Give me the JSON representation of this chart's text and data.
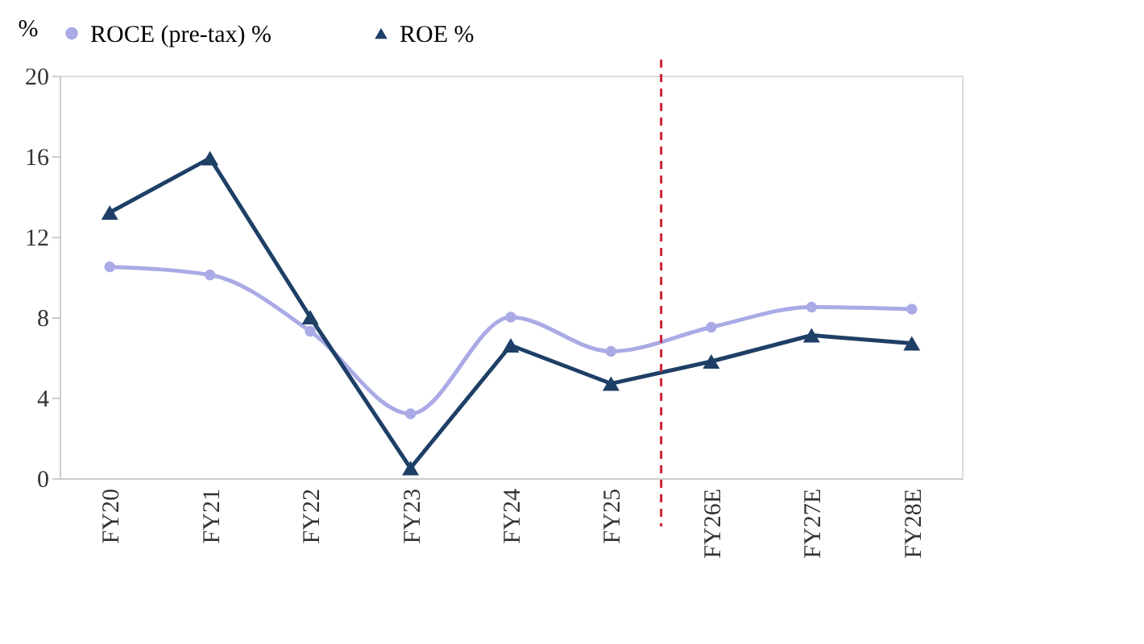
{
  "chart_data": {
    "type": "line",
    "ylabel": "%",
    "categories": [
      "FY20",
      "FY21",
      "FY22",
      "FY23",
      "FY24",
      "FY25",
      "FY26E",
      "FY27E",
      "FY28E"
    ],
    "series": [
      {
        "name": "ROCE (pre-tax) %",
        "color": "#aaaae6",
        "marker": "circle",
        "values": [
          10.5,
          10.1,
          7.3,
          3.2,
          8.0,
          6.3,
          7.5,
          8.5,
          8.4
        ]
      },
      {
        "name": "ROE %",
        "color": "#1e3f66",
        "marker": "triangle",
        "values": [
          13.2,
          15.9,
          8.0,
          0.5,
          6.6,
          4.7,
          5.8,
          7.1,
          6.7
        ]
      }
    ],
    "ylim": [
      0,
      20
    ],
    "yticks": [
      0,
      4,
      8,
      12,
      16,
      20
    ],
    "grid": false,
    "legend": "top",
    "ref_lines": [
      {
        "axis": "x",
        "value": "FY26E",
        "color": "#cc2233",
        "line_style": "dashed"
      }
    ]
  }
}
